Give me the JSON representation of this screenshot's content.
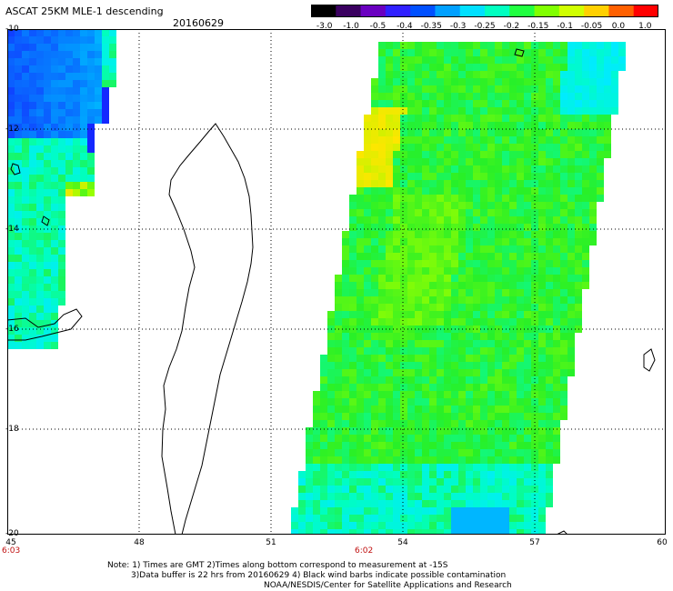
{
  "header": {
    "title": "ASCAT 25KM MLE-1 descending",
    "date": "20160629"
  },
  "colorbar": {
    "labels": [
      "-3.0",
      "-1.0",
      "-0.5",
      "-0.4",
      "-0.35",
      "-0.3",
      "-0.25",
      "-0.2",
      "-0.15",
      "-0.1",
      "-0.05",
      "0.0",
      "1.0"
    ],
    "colors": [
      "#000000",
      "#3a0060",
      "#6a00c0",
      "#3020ff",
      "#0050ff",
      "#00a0ff",
      "#00e0ff",
      "#00ffc0",
      "#20ff40",
      "#80ff00",
      "#d0ff00",
      "#ffd000",
      "#ff6000",
      "#ff0000"
    ]
  },
  "map": {
    "lat_labels": [
      "-10",
      "-12",
      "-14",
      "-16",
      "-18",
      "-20"
    ],
    "lon_labels": [
      "45",
      "48",
      "51",
      "54",
      "57",
      "60"
    ],
    "times": [
      {
        "label": "6:03"
      },
      {
        "label": "6:02"
      }
    ]
  },
  "notes": {
    "line1": "Note: 1) Times are GMT 2)Times along bottom correspond to measurement at -15S",
    "line2": "3)Data buffer is 22 hrs from 20160629 4) Black wind barbs indicate possible contamination",
    "line3": "NOAA/NESDIS/Center for Satellite Applications and Research"
  }
}
